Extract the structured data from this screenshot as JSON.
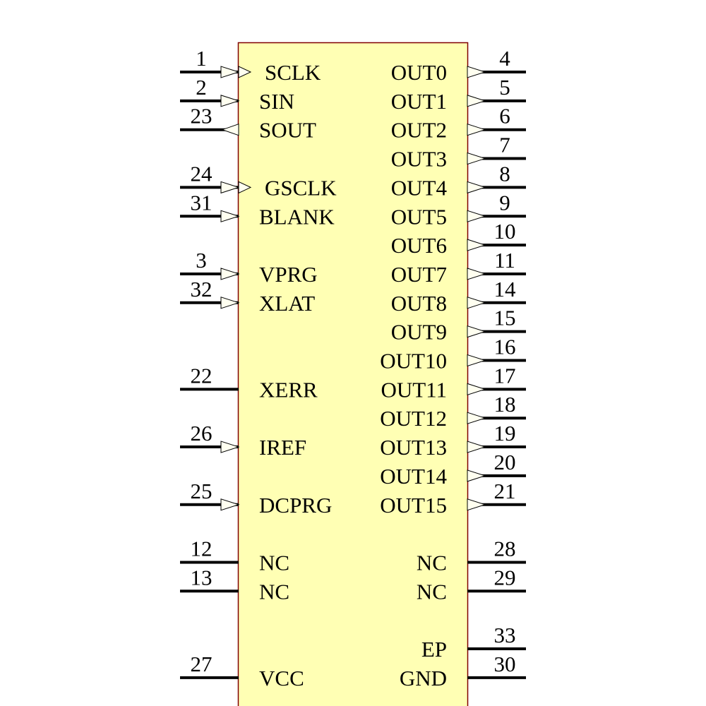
{
  "colors": {
    "body_fill": "#ffffb4",
    "body_stroke": "#800000",
    "pin": "#000000",
    "arrow_fill": "#fffff0"
  },
  "left_pins": [
    {
      "num": "1",
      "label": "SCLK",
      "row": 0,
      "type": "input",
      "clock": true
    },
    {
      "num": "2",
      "label": "SIN",
      "row": 1,
      "type": "input",
      "clock": false
    },
    {
      "num": "23",
      "label": "SOUT",
      "row": 2,
      "type": "output",
      "clock": false
    },
    {
      "num": "24",
      "label": "GSCLK",
      "row": 4,
      "type": "input",
      "clock": true
    },
    {
      "num": "31",
      "label": "BLANK",
      "row": 5,
      "type": "input",
      "clock": false
    },
    {
      "num": "3",
      "label": "VPRG",
      "row": 7,
      "type": "input",
      "clock": false
    },
    {
      "num": "32",
      "label": "XLAT",
      "row": 8,
      "type": "input",
      "clock": false
    },
    {
      "num": "22",
      "label": "XERR",
      "row": 11,
      "type": "passive",
      "clock": false
    },
    {
      "num": "26",
      "label": "IREF",
      "row": 13,
      "type": "input",
      "clock": false
    },
    {
      "num": "25",
      "label": "DCPRG",
      "row": 15,
      "type": "input",
      "clock": false
    },
    {
      "num": "12",
      "label": "NC",
      "row": 17,
      "type": "passive",
      "clock": false
    },
    {
      "num": "13",
      "label": "NC",
      "row": 18,
      "type": "passive",
      "clock": false
    },
    {
      "num": "27",
      "label": "VCC",
      "row": 21,
      "type": "passive",
      "clock": false
    }
  ],
  "right_pins": [
    {
      "num": "4",
      "label": "OUT0",
      "row": 0,
      "type": "output"
    },
    {
      "num": "5",
      "label": "OUT1",
      "row": 1,
      "type": "output"
    },
    {
      "num": "6",
      "label": "OUT2",
      "row": 2,
      "type": "output"
    },
    {
      "num": "7",
      "label": "OUT3",
      "row": 3,
      "type": "output"
    },
    {
      "num": "8",
      "label": "OUT4",
      "row": 4,
      "type": "output"
    },
    {
      "num": "9",
      "label": "OUT5",
      "row": 5,
      "type": "output"
    },
    {
      "num": "10",
      "label": "OUT6",
      "row": 6,
      "type": "output"
    },
    {
      "num": "11",
      "label": "OUT7",
      "row": 7,
      "type": "output"
    },
    {
      "num": "14",
      "label": "OUT8",
      "row": 8,
      "type": "output"
    },
    {
      "num": "15",
      "label": "OUT9",
      "row": 9,
      "type": "output"
    },
    {
      "num": "16",
      "label": "OUT10",
      "row": 10,
      "type": "output"
    },
    {
      "num": "17",
      "label": "OUT11",
      "row": 11,
      "type": "output"
    },
    {
      "num": "18",
      "label": "OUT12",
      "row": 12,
      "type": "output"
    },
    {
      "num": "19",
      "label": "OUT13",
      "row": 13,
      "type": "output"
    },
    {
      "num": "20",
      "label": "OUT14",
      "row": 14,
      "type": "output"
    },
    {
      "num": "21",
      "label": "OUT15",
      "row": 15,
      "type": "output"
    },
    {
      "num": "28",
      "label": "NC",
      "row": 17,
      "type": "passive"
    },
    {
      "num": "29",
      "label": "NC",
      "row": 18,
      "type": "passive"
    },
    {
      "num": "33",
      "label": "EP",
      "row": 20,
      "type": "passive"
    },
    {
      "num": "30",
      "label": "GND",
      "row": 21,
      "type": "passive"
    }
  ]
}
